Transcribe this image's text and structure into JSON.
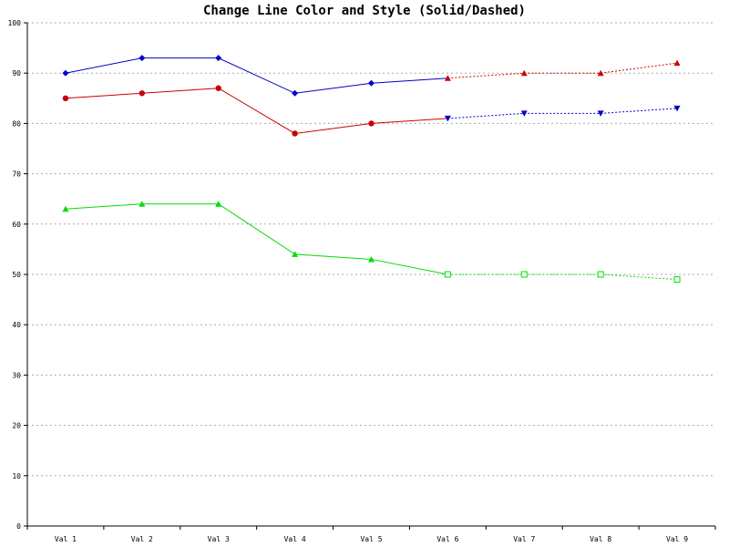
{
  "chart_data": {
    "type": "line",
    "title": "Change Line Color and Style (Solid/Dashed)",
    "categories": [
      "Val 1",
      "Val 2",
      "Val 3",
      "Val 4",
      "Val 5",
      "Val 6",
      "Val 7",
      "Val 8",
      "Val 9"
    ],
    "ylim": [
      0,
      100
    ],
    "yticks": [
      0,
      10,
      20,
      30,
      40,
      50,
      60,
      70,
      80,
      90,
      100
    ],
    "grid": true,
    "style_change_index": 5,
    "series": [
      {
        "values": [
          90,
          93,
          93,
          86,
          88,
          89,
          90,
          90,
          92
        ],
        "solid_color": "#0000cc",
        "solid_marker": "diamond",
        "dashed_color": "#cc0000",
        "dashed_marker": "triangle-up"
      },
      {
        "values": [
          85,
          86,
          87,
          78,
          80,
          81,
          82,
          82,
          83
        ],
        "solid_color": "#cc0000",
        "solid_marker": "circle",
        "dashed_color": "#0000cc",
        "dashed_marker": "triangle-down"
      },
      {
        "values": [
          63,
          64,
          64,
          54,
          53,
          50,
          50,
          50,
          49
        ],
        "solid_color": "#00dd00",
        "solid_marker": "triangle-up",
        "dashed_color": "#00dd00",
        "dashed_marker": "square-open"
      }
    ]
  }
}
